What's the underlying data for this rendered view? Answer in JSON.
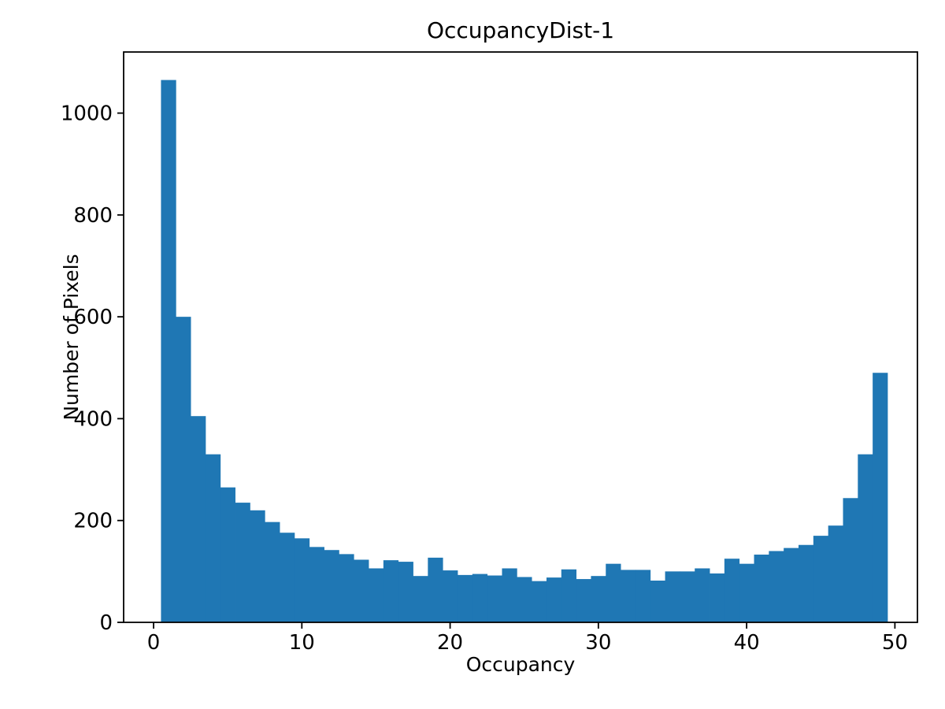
{
  "figure": {
    "background": "#ffffff"
  },
  "chart_data": {
    "type": "bar",
    "subtype": "histogram",
    "title": "OccupancyDist-1",
    "xlabel": "Occupancy",
    "ylabel": "Number of Pixels",
    "bar_color": "#1f77b4",
    "bin_start": 0.5,
    "bin_width": 1,
    "bin_centers": [
      1,
      2,
      3,
      4,
      5,
      6,
      7,
      8,
      9,
      10,
      11,
      12,
      13,
      14,
      15,
      16,
      17,
      18,
      19,
      20,
      21,
      22,
      23,
      24,
      25,
      26,
      27,
      28,
      29,
      30,
      31,
      32,
      33,
      34,
      35,
      36,
      37,
      38,
      39,
      40,
      41,
      42,
      43,
      44,
      45,
      46,
      47,
      48,
      49
    ],
    "values": [
      1065,
      600,
      405,
      330,
      265,
      235,
      220,
      197,
      176,
      165,
      148,
      142,
      134,
      123,
      106,
      122,
      119,
      91,
      127,
      102,
      93,
      95,
      92,
      106,
      89,
      81,
      88,
      104,
      85,
      91,
      115,
      103,
      103,
      82,
      100,
      100,
      106,
      96,
      125,
      115,
      133,
      140,
      146,
      152,
      170,
      190,
      244,
      330,
      490
    ],
    "xticks": [
      0,
      10,
      20,
      30,
      40,
      50
    ],
    "yticks": [
      0,
      200,
      400,
      600,
      800,
      1000
    ],
    "xlim": [
      -2.02,
      51.52
    ],
    "ylim": [
      0,
      1120
    ],
    "grid": false,
    "legend": "none"
  }
}
